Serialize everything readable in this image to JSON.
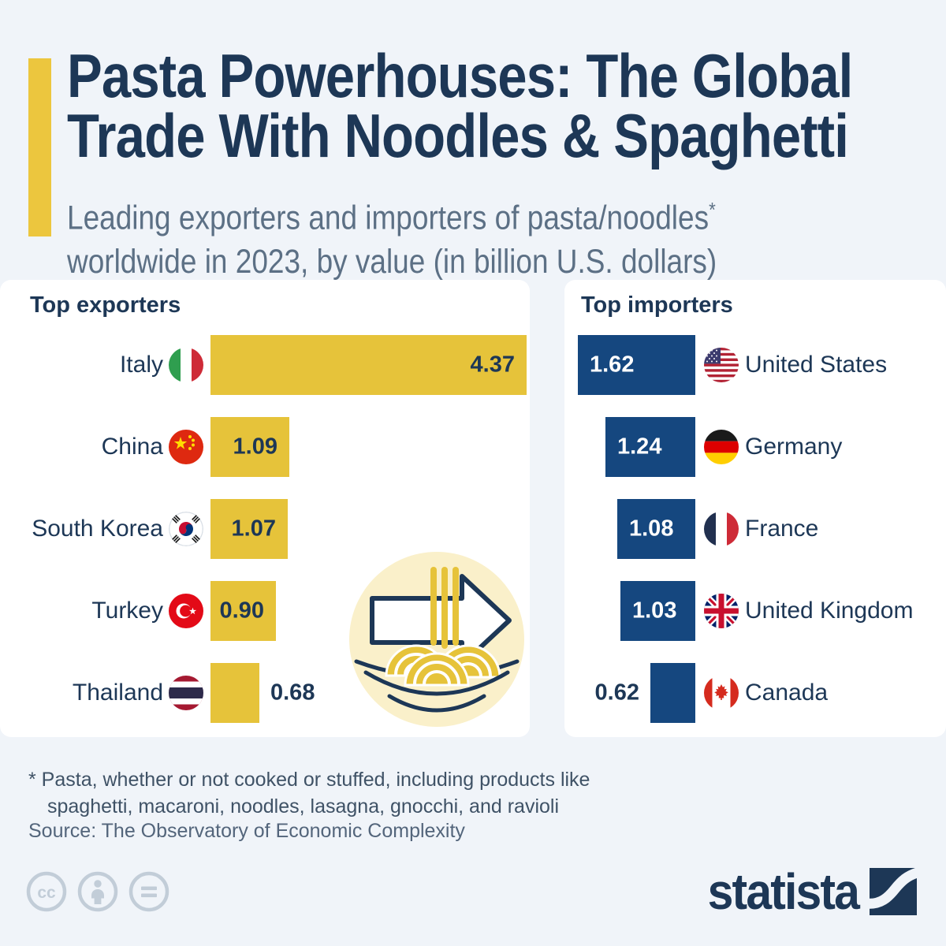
{
  "header": {
    "title_line1": "Pasta Powerhouses: The Global",
    "title_line2": "Trade With Noodles & Spaghetti",
    "subtitle_line1": "Leading exporters and importers of pasta/noodles",
    "subtitle_marker": "*",
    "subtitle_line2": "worldwide in 2023, by value (in billion U.S. dollars)"
  },
  "colors": {
    "accent_yellow": "#ECC63E",
    "bar_yellow": "#E6C33A",
    "bar_blue": "#15477F",
    "navy": "#1D3756",
    "page_bg": "#F0F4F9",
    "panel_bg": "#FFFFFF"
  },
  "exporters": {
    "title": "Top exporters",
    "rows": [
      {
        "country": "Italy",
        "flag_icon": "flag-italy-icon",
        "value": 4.37,
        "value_label": "4.37"
      },
      {
        "country": "China",
        "flag_icon": "flag-china-icon",
        "value": 1.09,
        "value_label": "1.09"
      },
      {
        "country": "South Korea",
        "flag_icon": "flag-south-korea-icon",
        "value": 1.07,
        "value_label": "1.07"
      },
      {
        "country": "Turkey",
        "flag_icon": "flag-turkey-icon",
        "value": 0.9,
        "value_label": "0.90"
      },
      {
        "country": "Thailand",
        "flag_icon": "flag-thailand-icon",
        "value": 0.68,
        "value_label": "0.68"
      }
    ]
  },
  "importers": {
    "title": "Top importers",
    "rows": [
      {
        "country": "United States",
        "flag_icon": "flag-united-states-icon",
        "value": 1.62,
        "value_label": "1.62"
      },
      {
        "country": "Germany",
        "flag_icon": "flag-germany-icon",
        "value": 1.24,
        "value_label": "1.24"
      },
      {
        "country": "France",
        "flag_icon": "flag-france-icon",
        "value": 1.08,
        "value_label": "1.08"
      },
      {
        "country": "United Kingdom",
        "flag_icon": "flag-united-kingdom-icon",
        "value": 1.03,
        "value_label": "1.03"
      },
      {
        "country": "Canada",
        "flag_icon": "flag-canada-icon",
        "value": 0.62,
        "value_label": "0.62"
      }
    ]
  },
  "footer": {
    "footnote_line1": "* Pasta, whether or not cooked or stuffed, including products like",
    "footnote_line2": "spaghetti, macaroni, noodles, lasagna, gnocchi, and ravioli",
    "source": "Source: The Observatory of Economic Complexity",
    "logo_text": "statista"
  },
  "chart_data": [
    {
      "type": "bar",
      "orientation": "horizontal",
      "title": "Top exporters",
      "categories": [
        "Italy",
        "China",
        "South Korea",
        "Turkey",
        "Thailand"
      ],
      "values": [
        4.37,
        1.09,
        1.07,
        0.9,
        0.68
      ],
      "value_labels": [
        "4.37",
        "1.09",
        "1.07",
        "0.90",
        "0.68"
      ],
      "unit": "billion U.S. dollars",
      "year": "2023",
      "bar_color": "#E6C33A",
      "xlim": [
        0,
        4.37
      ],
      "grid": false,
      "legend": false
    },
    {
      "type": "bar",
      "orientation": "horizontal",
      "title": "Top importers",
      "categories": [
        "United States",
        "Germany",
        "France",
        "United Kingdom",
        "Canada"
      ],
      "values": [
        1.62,
        1.24,
        1.08,
        1.03,
        0.62
      ],
      "value_labels": [
        "1.62",
        "1.24",
        "1.08",
        "1.03",
        "0.62"
      ],
      "unit": "billion U.S. dollars",
      "year": "2023",
      "bar_color": "#15477F",
      "xlim": [
        0,
        4.37
      ],
      "grid": false,
      "legend": false
    }
  ]
}
